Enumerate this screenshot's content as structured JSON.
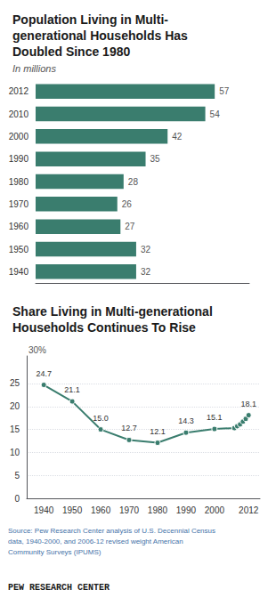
{
  "chart_data": [
    {
      "type": "bar",
      "title": "Population Living in Multi-\ngenerational Households Has\nDoubled Since 1980",
      "subtitle": "In millions",
      "orientation": "horizontal",
      "categories": [
        "2012",
        "2010",
        "2000",
        "1990",
        "1980",
        "1970",
        "1960",
        "1950",
        "1940"
      ],
      "values": [
        57,
        54,
        42,
        35,
        28,
        26,
        27,
        32,
        32
      ],
      "color": "#3a7d6e",
      "xlim": [
        0,
        68
      ],
      "xticks": [],
      "tick_labels": "y",
      "data_labels": true,
      "grid": false
    },
    {
      "type": "line",
      "title": "Share Living in Multi-generational\nHouseholds Continues To Rise",
      "x": [
        1940,
        1950,
        1960,
        1970,
        1980,
        1990,
        2000,
        2007,
        2008,
        2009,
        2010,
        2011,
        2012
      ],
      "values": [
        24.7,
        21.1,
        15.0,
        12.7,
        12.1,
        14.3,
        15.1,
        15.3,
        15.7,
        16.1,
        16.7,
        17.3,
        18.1
      ],
      "value_labels": [
        "24.7",
        "21.1",
        "15.0",
        "12.7",
        "12.1",
        "14.3",
        "15.1",
        null,
        null,
        null,
        null,
        null,
        "18.1"
      ],
      "color": "#3a7d6e",
      "marker": "circle",
      "xlim": [
        1934,
        2016
      ],
      "xticks": [
        1940,
        1950,
        1960,
        1970,
        1980,
        1990,
        2000,
        2012
      ],
      "ylim": [
        0,
        31
      ],
      "yticks": [
        0,
        5,
        10,
        15,
        20,
        25
      ],
      "grid": true,
      "annotations": [
        "30%"
      ],
      "source": "Source: Pew Research Center analysis of U.S. Decennial Census\ndata, 1940-2000, and 2006-12 revised weight American\nCommunity Surveys (IPUMS)",
      "footer": "PEW RESEARCH CENTER"
    }
  ]
}
